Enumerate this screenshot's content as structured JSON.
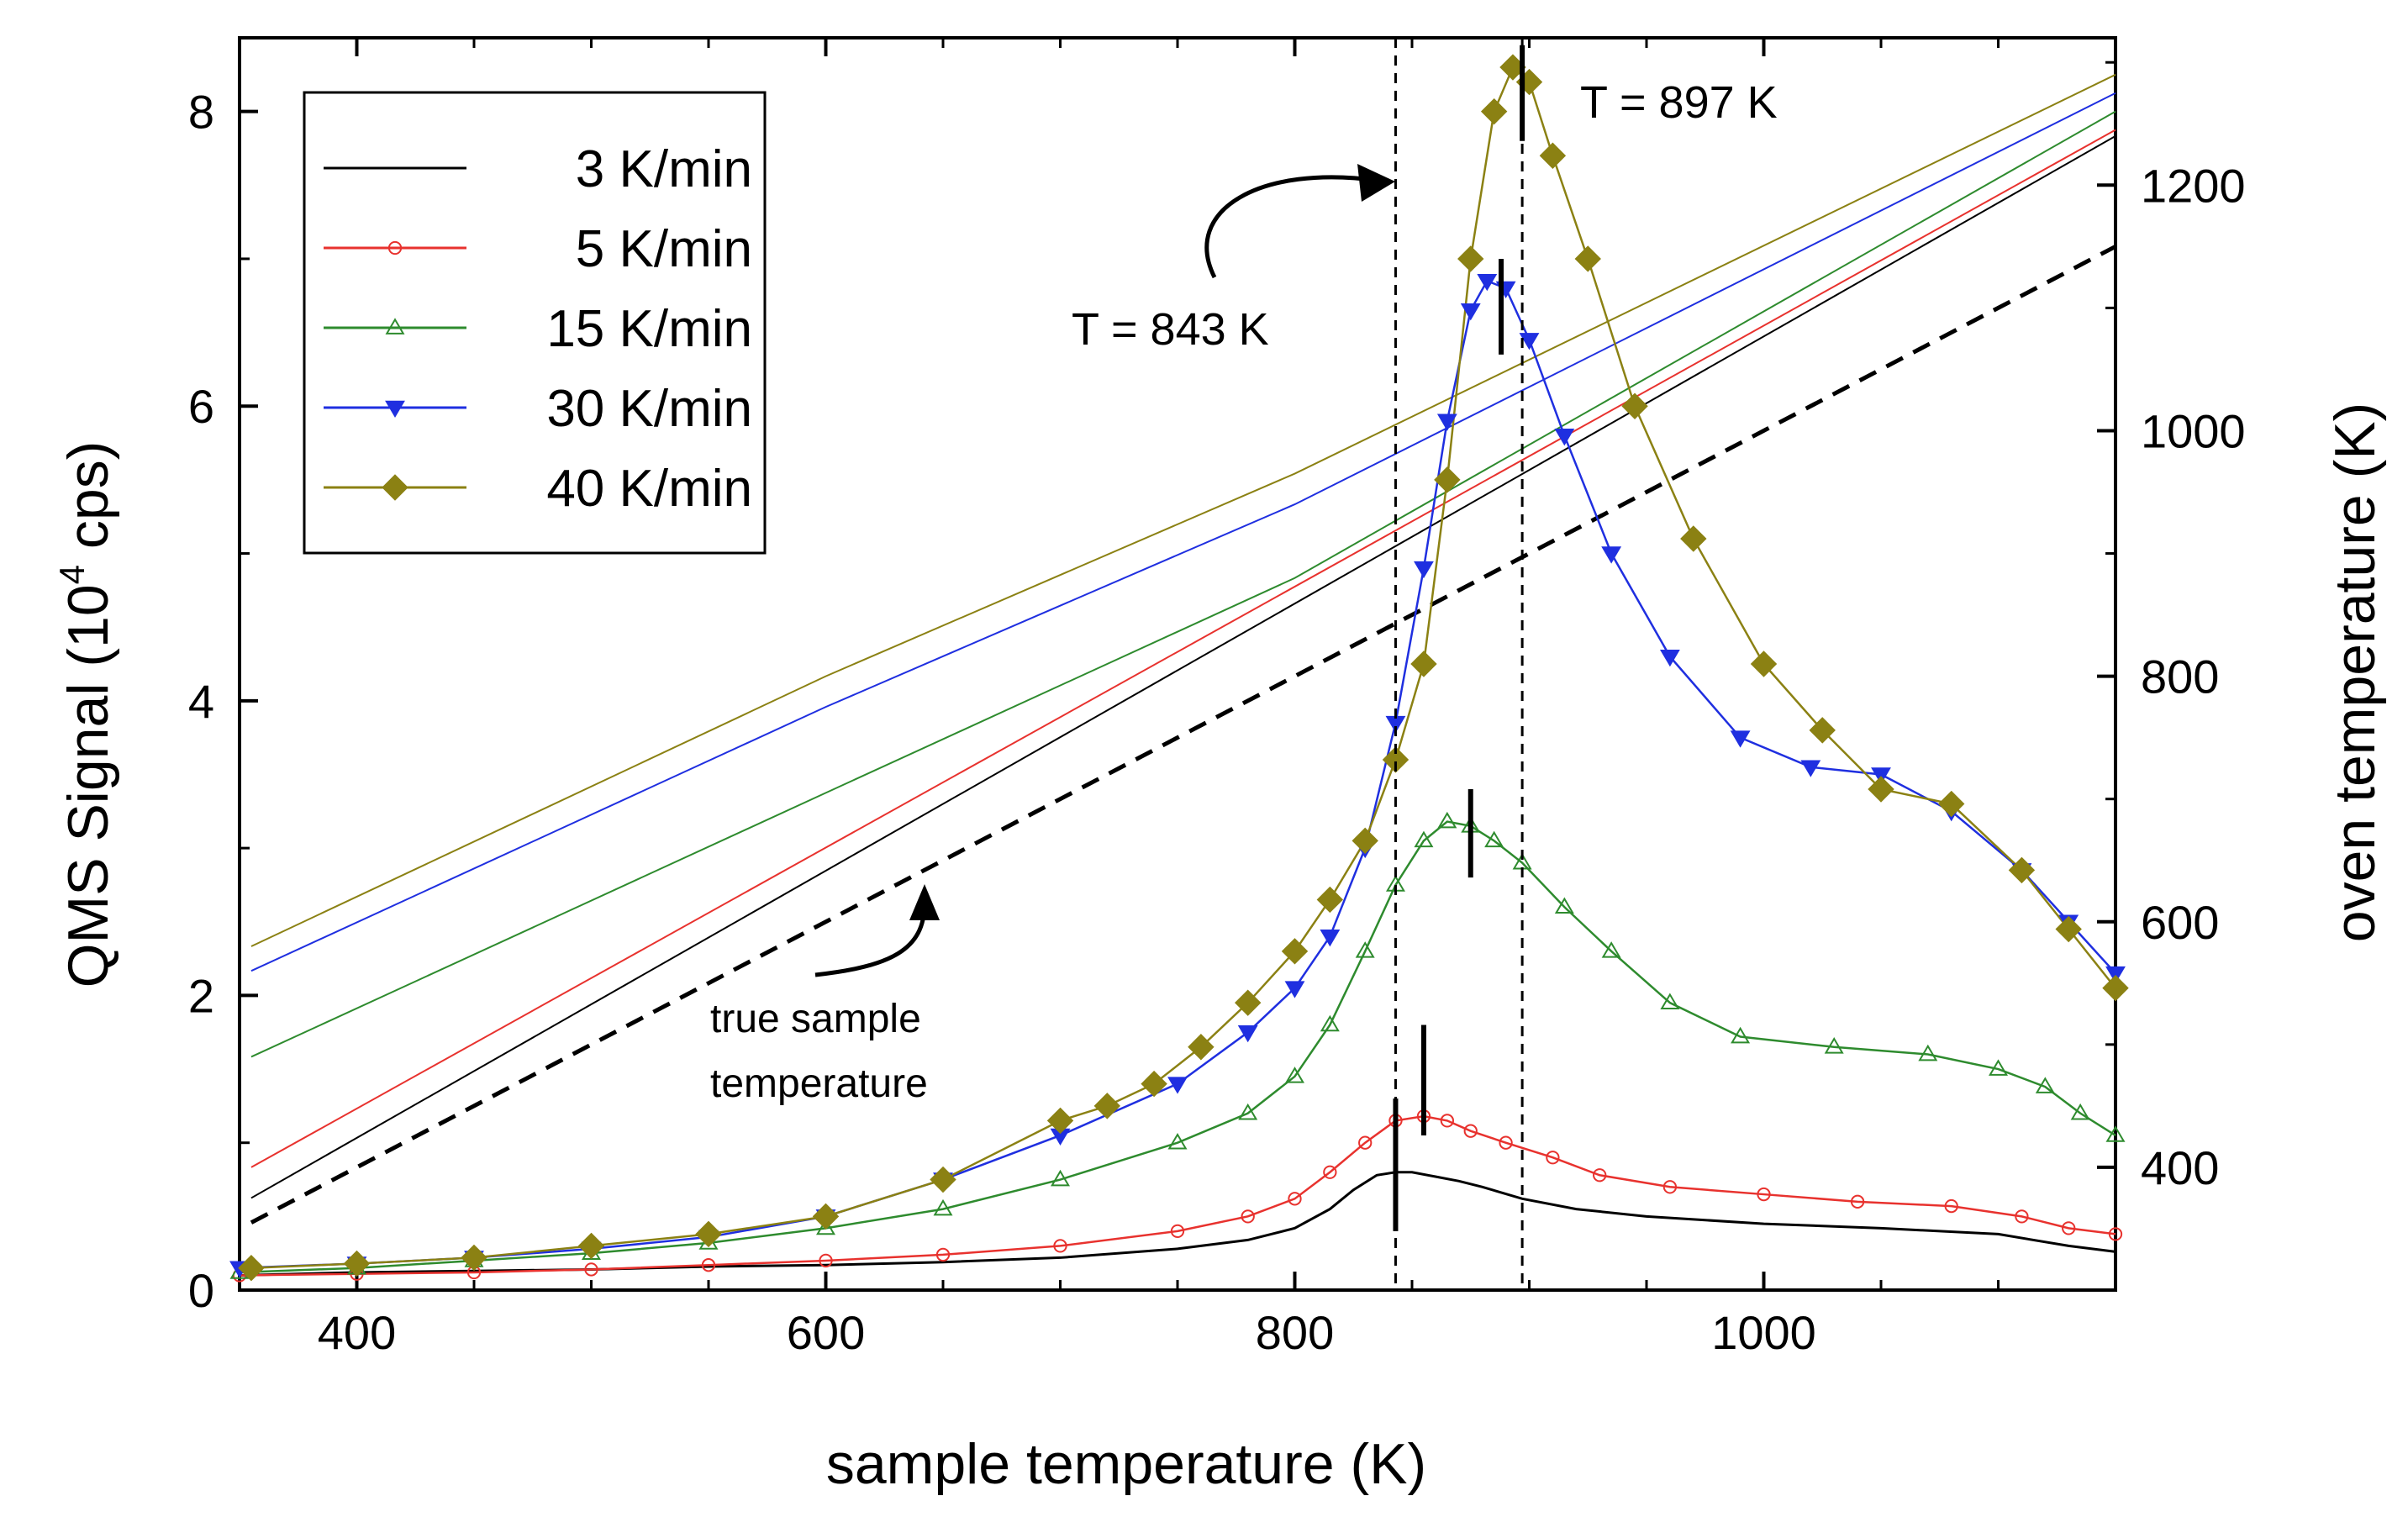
{
  "chart_data": {
    "type": "line",
    "title": "",
    "xlabel": "sample temperature (K)",
    "ylabel_left": "QMS Signal (10",
    "ylabel_left_sup": "4",
    "ylabel_left_tail": " cps)",
    "ylabel_right": "oven temperature (K)",
    "xlim": [
      350,
      1150
    ],
    "ylim_left": [
      0,
      8.5
    ],
    "ylim_right": [
      300,
      1320
    ],
    "xticks": [
      400,
      600,
      800,
      1000
    ],
    "yticks_left": [
      0,
      2,
      4,
      6,
      8
    ],
    "yticks_right": [
      400,
      600,
      800,
      1000,
      1200
    ],
    "legend_position": "top-left",
    "series": [
      {
        "name": "3 K/min",
        "label": "3 K/min",
        "color": "#000000",
        "marker": "none",
        "x": [
          350,
          400,
          450,
          500,
          550,
          600,
          650,
          700,
          750,
          780,
          800,
          815,
          825,
          835,
          843,
          850,
          860,
          870,
          880,
          897,
          920,
          950,
          1000,
          1050,
          1100,
          1130,
          1150
        ],
        "y": [
          0.1,
          0.12,
          0.13,
          0.14,
          0.16,
          0.17,
          0.19,
          0.22,
          0.28,
          0.34,
          0.42,
          0.55,
          0.68,
          0.78,
          0.8,
          0.8,
          0.77,
          0.74,
          0.7,
          0.62,
          0.55,
          0.5,
          0.45,
          0.42,
          0.38,
          0.3,
          0.26
        ]
      },
      {
        "name": "5 K/min",
        "label": "5 K/min",
        "color": "#e8322e",
        "marker": "circle",
        "x": [
          350,
          400,
          450,
          500,
          550,
          600,
          650,
          700,
          750,
          780,
          800,
          815,
          830,
          843,
          855,
          865,
          875,
          890,
          910,
          930,
          960,
          1000,
          1040,
          1080,
          1110,
          1130,
          1150
        ],
        "y": [
          0.1,
          0.11,
          0.12,
          0.14,
          0.17,
          0.2,
          0.24,
          0.3,
          0.4,
          0.5,
          0.62,
          0.8,
          1.0,
          1.15,
          1.18,
          1.15,
          1.08,
          1.0,
          0.9,
          0.78,
          0.7,
          0.65,
          0.6,
          0.57,
          0.5,
          0.42,
          0.38
        ]
      },
      {
        "name": "15 K/min",
        "label": "15 K/min",
        "color": "#2e8b2e",
        "marker": "triangle-up-open",
        "x": [
          350,
          400,
          450,
          500,
          550,
          600,
          650,
          700,
          750,
          780,
          800,
          815,
          830,
          843,
          855,
          865,
          875,
          885,
          897,
          915,
          935,
          960,
          990,
          1030,
          1070,
          1100,
          1120,
          1135,
          1150
        ],
        "y": [
          0.12,
          0.15,
          0.2,
          0.25,
          0.32,
          0.42,
          0.55,
          0.75,
          1.0,
          1.2,
          1.45,
          1.8,
          2.3,
          2.75,
          3.05,
          3.18,
          3.15,
          3.05,
          2.9,
          2.6,
          2.3,
          1.95,
          1.72,
          1.65,
          1.6,
          1.5,
          1.38,
          1.2,
          1.05
        ]
      },
      {
        "name": "30 K/min",
        "label": "30 K/min",
        "color": "#1f2fe0",
        "marker": "triangle-down",
        "x": [
          350,
          400,
          450,
          500,
          550,
          600,
          650,
          700,
          750,
          780,
          800,
          815,
          830,
          843,
          855,
          865,
          875,
          882,
          890,
          900,
          915,
          935,
          960,
          990,
          1020,
          1050,
          1080,
          1110,
          1130,
          1150
        ],
        "y": [
          0.15,
          0.18,
          0.22,
          0.28,
          0.36,
          0.5,
          0.75,
          1.05,
          1.4,
          1.75,
          2.05,
          2.4,
          3.0,
          3.85,
          4.9,
          5.9,
          6.65,
          6.85,
          6.8,
          6.45,
          5.8,
          5.0,
          4.3,
          3.75,
          3.55,
          3.5,
          3.25,
          2.85,
          2.5,
          2.15
        ]
      },
      {
        "name": "40 K/min",
        "label": "40 K/min",
        "color": "#8b8113",
        "marker": "diamond",
        "x": [
          355,
          400,
          450,
          500,
          550,
          600,
          650,
          700,
          720,
          740,
          760,
          780,
          800,
          815,
          830,
          843,
          855,
          865,
          875,
          885,
          893,
          900,
          910,
          925,
          945,
          970,
          1000,
          1025,
          1050,
          1080,
          1110,
          1130,
          1150
        ],
        "y": [
          0.15,
          0.18,
          0.22,
          0.3,
          0.38,
          0.5,
          0.75,
          1.15,
          1.25,
          1.4,
          1.65,
          1.95,
          2.3,
          2.65,
          3.05,
          3.6,
          4.25,
          5.5,
          7.0,
          8.0,
          8.3,
          8.2,
          7.7,
          7.0,
          6.0,
          5.1,
          4.25,
          3.8,
          3.4,
          3.3,
          2.85,
          2.45,
          2.05
        ]
      }
    ],
    "oven_temperature_lines": [
      {
        "for": "3 K/min",
        "color": "#000000",
        "x": [
          355,
          1150
        ],
        "y": [
          375,
          1240
        ]
      },
      {
        "for": "5 K/min",
        "color": "#e8322e",
        "x": [
          355,
          1150
        ],
        "y": [
          400,
          1245
        ]
      },
      {
        "for": "15 K/min",
        "color": "#2e8b2e",
        "x": [
          355,
          600,
          800,
          1150
        ],
        "y": [
          490,
          705,
          880,
          1260
        ]
      },
      {
        "for": "30 K/min",
        "color": "#1f2fe0",
        "x": [
          355,
          600,
          800,
          1150
        ],
        "y": [
          560,
          775,
          940,
          1275
        ]
      },
      {
        "for": "40 K/min",
        "color": "#8b8113",
        "x": [
          355,
          600,
          800,
          1150
        ],
        "y": [
          580,
          800,
          965,
          1290
        ]
      }
    ],
    "true_sample_temperature_line": {
      "x": [
        355,
        1150
      ],
      "y": [
        355,
        1150
      ]
    },
    "vertical_markers": [
      843,
      897
    ],
    "peak_markers": [
      {
        "series": "3 K/min",
        "x": 843,
        "y0": 0.4,
        "y1": 1.3
      },
      {
        "series": "5 K/min",
        "x": 855,
        "y0": 1.05,
        "y1": 1.8
      },
      {
        "series": "15 K/min",
        "x": 875,
        "y0": 2.8,
        "y1": 3.4
      },
      {
        "series": "30 K/min",
        "x": 888,
        "y0": 6.35,
        "y1": 7.0
      },
      {
        "series": "40 K/min",
        "x": 897,
        "y0": 7.8,
        "y1": 8.45
      }
    ],
    "annotations": {
      "t843": "T = 843 K",
      "t897": "T = 897 K",
      "true_sample_line1": "true sample",
      "true_sample_line2": "temperature"
    }
  }
}
